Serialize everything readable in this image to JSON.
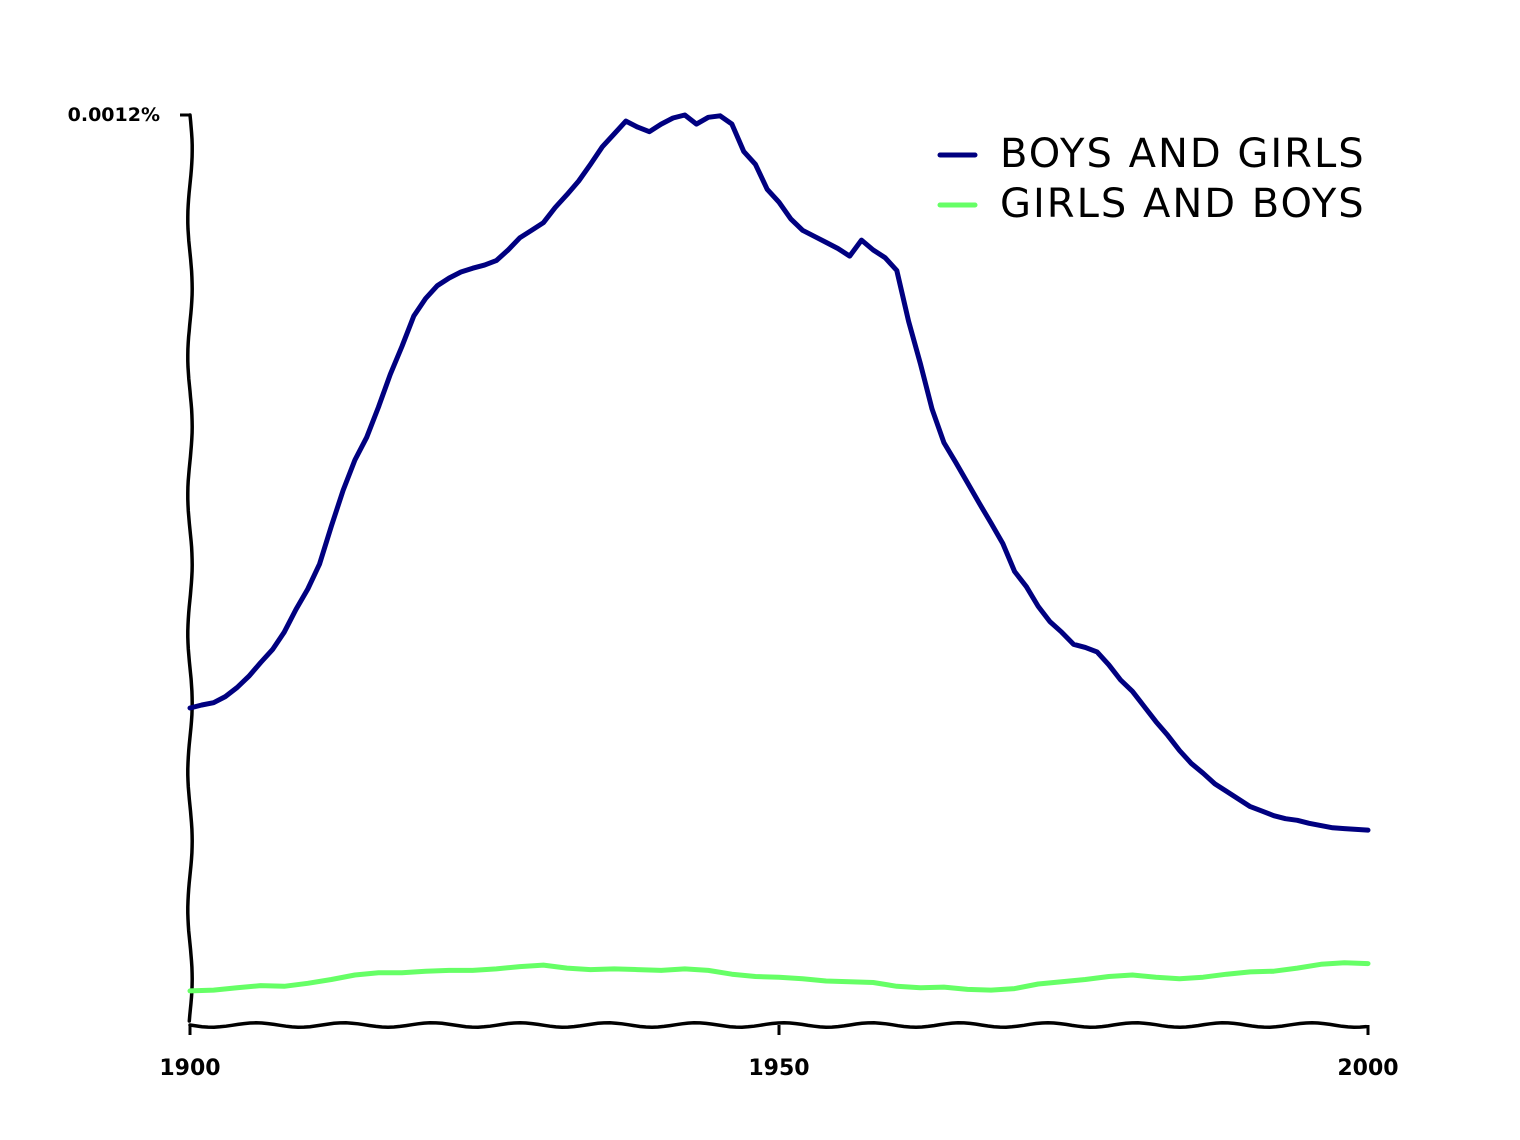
{
  "chart_data": {
    "type": "line",
    "title": "",
    "xlabel": "",
    "ylabel": "",
    "xlim": [
      1900,
      2000
    ],
    "ylim": [
      0,
      0.0012
    ],
    "x_ticks": [
      {
        "value": 1900,
        "label": "1900"
      },
      {
        "value": 1950,
        "label": "1950"
      },
      {
        "value": 2000,
        "label": "2000"
      }
    ],
    "y_ticks": [
      {
        "value": 0.0012,
        "label": "0.0012%"
      }
    ],
    "legend_position": "top-right",
    "series": [
      {
        "name": "BOYS AND GIRLS",
        "color": "#000080",
        "x": [
          1900,
          1901,
          1902,
          1903,
          1904,
          1905,
          1906,
          1907,
          1908,
          1909,
          1910,
          1911,
          1912,
          1913,
          1914,
          1915,
          1916,
          1917,
          1918,
          1919,
          1920,
          1921,
          1922,
          1923,
          1924,
          1925,
          1926,
          1927,
          1928,
          1929,
          1930,
          1931,
          1932,
          1933,
          1934,
          1935,
          1936,
          1937,
          1938,
          1939,
          1940,
          1941,
          1942,
          1943,
          1944,
          1945,
          1946,
          1947,
          1948,
          1949,
          1950,
          1951,
          1952,
          1953,
          1954,
          1955,
          1956,
          1957,
          1958,
          1959,
          1960,
          1961,
          1962,
          1963,
          1964,
          1965,
          1966,
          1967,
          1968,
          1969,
          1970,
          1971,
          1972,
          1973,
          1974,
          1975,
          1976,
          1977,
          1978,
          1979,
          1980,
          1981,
          1982,
          1983,
          1984,
          1985,
          1986,
          1987,
          1988,
          1989,
          1990,
          1991,
          1992,
          1993,
          1994,
          1995,
          1996,
          1997,
          1998,
          1999,
          2000
        ],
        "values": [
          0.000418,
          0.000422,
          0.000425,
          0.000433,
          0.000445,
          0.00046,
          0.000478,
          0.000495,
          0.000518,
          0.000548,
          0.000575,
          0.000608,
          0.000658,
          0.000705,
          0.000745,
          0.000775,
          0.000815,
          0.000858,
          0.000895,
          0.000935,
          0.000958,
          0.000975,
          0.000985,
          0.000993,
          0.000998,
          0.001002,
          0.001008,
          0.001022,
          0.001038,
          0.001048,
          0.001058,
          0.001078,
          0.001095,
          0.001113,
          0.001135,
          0.001158,
          0.001175,
          0.001192,
          0.001184,
          0.001178,
          0.001188,
          0.001196,
          0.0012,
          0.001188,
          0.001197,
          0.001199,
          0.001188,
          0.001152,
          0.001135,
          0.001102,
          0.001085,
          0.001063,
          0.001048,
          0.00104,
          0.001032,
          0.001024,
          0.001014,
          0.001035,
          0.001022,
          0.001012,
          0.000995,
          0.000928,
          0.000872,
          0.000812,
          0.000768,
          0.000742,
          0.000715,
          0.000688,
          0.000662,
          0.000635,
          0.000598,
          0.000578,
          0.000552,
          0.000532,
          0.000518,
          0.000502,
          0.000498,
          0.000492,
          0.000475,
          0.000455,
          0.00044,
          0.00042,
          0.0004,
          0.000382,
          0.000362,
          0.000345,
          0.000332,
          0.000318,
          0.000308,
          0.000298,
          0.000288,
          0.000282,
          0.000276,
          0.000272,
          0.00027,
          0.000266,
          0.000263,
          0.00026,
          0.000259,
          0.000258,
          0.000257
        ]
      },
      {
        "name": "GIRLS AND BOYS",
        "color": "#66ff66",
        "x": [
          1900,
          1902,
          1904,
          1906,
          1908,
          1910,
          1912,
          1914,
          1916,
          1918,
          1920,
          1922,
          1924,
          1926,
          1928,
          1930,
          1932,
          1934,
          1936,
          1938,
          1940,
          1942,
          1944,
          1946,
          1948,
          1950,
          1952,
          1954,
          1956,
          1958,
          1960,
          1962,
          1964,
          1966,
          1968,
          1970,
          1972,
          1974,
          1976,
          1978,
          1980,
          1982,
          1984,
          1986,
          1988,
          1990,
          1992,
          1994,
          1996,
          1998,
          2000
        ],
        "values": [
          4.5e-05,
          4.6e-05,
          4.9e-05,
          5.2e-05,
          5.1e-05,
          5.5e-05,
          6e-05,
          6.6e-05,
          6.9e-05,
          6.9e-05,
          7.1e-05,
          7.2e-05,
          7.2e-05,
          7.4e-05,
          7.7e-05,
          7.9e-05,
          7.5e-05,
          7.3e-05,
          7.4e-05,
          7.3e-05,
          7.2e-05,
          7.4e-05,
          7.2e-05,
          6.7e-05,
          6.4e-05,
          6.3e-05,
          6.1e-05,
          5.8e-05,
          5.7e-05,
          5.6e-05,
          5.1e-05,
          4.9e-05,
          5e-05,
          4.7e-05,
          4.6e-05,
          4.8e-05,
          5.4e-05,
          5.7e-05,
          6e-05,
          6.4e-05,
          6.6e-05,
          6.3e-05,
          6.1e-05,
          6.3e-05,
          6.7e-05,
          7e-05,
          7.1e-05,
          7.5e-05,
          8e-05,
          8.2e-05,
          8.1e-05
        ]
      }
    ]
  }
}
